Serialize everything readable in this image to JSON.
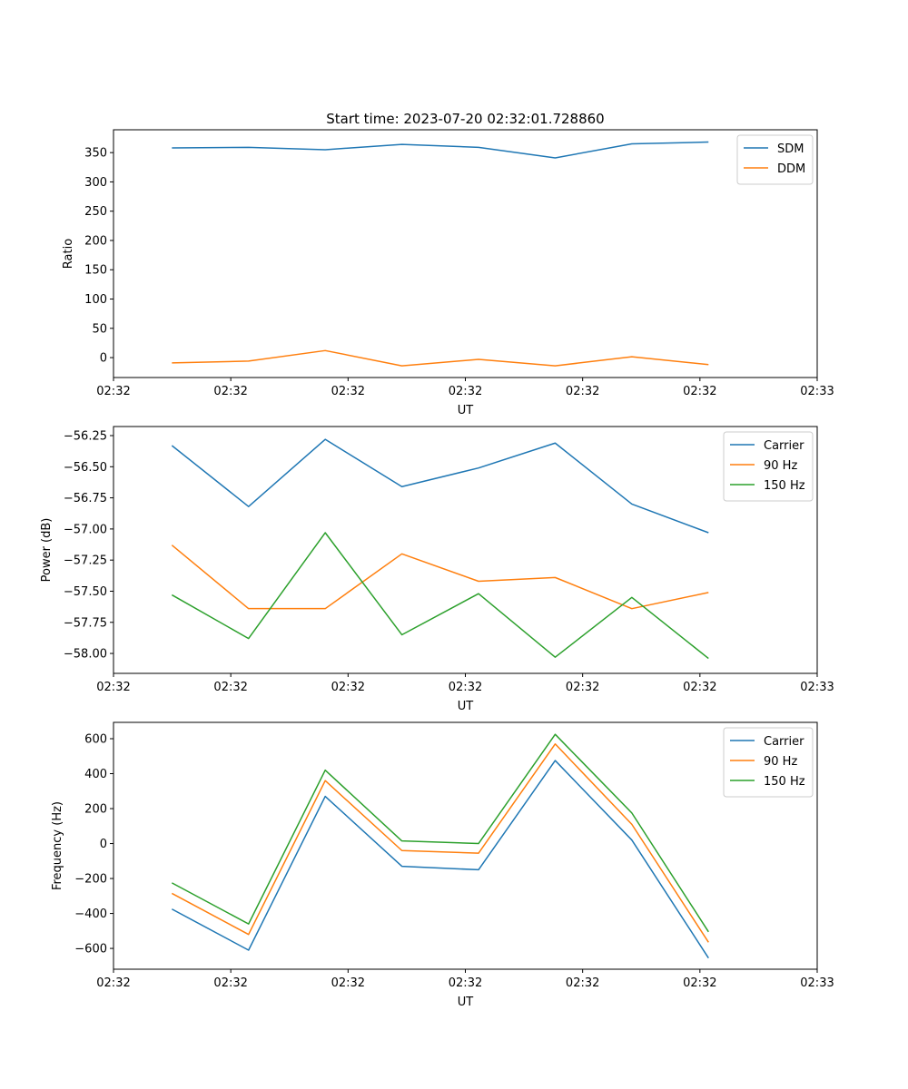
{
  "chart_data": [
    {
      "type": "line",
      "title": "Start time: 2023-07-20 02:32:01.728860",
      "xlabel": "UT",
      "ylabel": "Ratio",
      "x": [
        0,
        1,
        2,
        3,
        4,
        5,
        6,
        7
      ],
      "xlim": [
        -0.762,
        8.418
      ],
      "xticks": [
        -0.762,
        0.768,
        2.298,
        3.828,
        5.358,
        6.888,
        8.418
      ],
      "xtick_labels": [
        "02:32",
        "02:32",
        "02:32",
        "02:32",
        "02:32",
        "02:32",
        "02:33"
      ],
      "ylim": [
        -34,
        389
      ],
      "yticks": [
        0,
        50,
        100,
        150,
        200,
        250,
        300,
        350
      ],
      "ytick_labels": [
        "0",
        "50",
        "100",
        "150",
        "200",
        "250",
        "300",
        "350"
      ],
      "legend": "top-right",
      "series": [
        {
          "name": "SDM",
          "color": "#1f77b4",
          "values": [
            358,
            359,
            355,
            364,
            359,
            341,
            365,
            368
          ]
        },
        {
          "name": "DDM",
          "color": "#ff7f0e",
          "values": [
            -9,
            -6,
            12,
            -14,
            -3,
            -14,
            1.5,
            -12
          ]
        }
      ]
    },
    {
      "type": "line",
      "xlabel": "UT",
      "ylabel": "Power (dB)",
      "x": [
        0,
        1,
        2,
        3,
        4,
        5,
        6,
        7
      ],
      "xlim": [
        -0.762,
        8.418
      ],
      "xticks": [
        -0.762,
        0.768,
        2.298,
        3.828,
        5.358,
        6.888,
        8.418
      ],
      "xtick_labels": [
        "02:32",
        "02:32",
        "02:32",
        "02:32",
        "02:32",
        "02:32",
        "02:33"
      ],
      "ylim": [
        -58.16,
        -56.177
      ],
      "yticks": [
        -58.0,
        -57.75,
        -57.5,
        -57.25,
        -57.0,
        -56.75,
        -56.5,
        -56.25
      ],
      "ytick_labels": [
        "−58.00",
        "−57.75",
        "−57.50",
        "−57.25",
        "−57.00",
        "−56.75",
        "−56.50",
        "−56.25"
      ],
      "legend": "top-right",
      "series": [
        {
          "name": "Carrier",
          "color": "#1f77b4",
          "values": [
            -56.33,
            -56.82,
            -56.28,
            -56.66,
            -56.51,
            -56.31,
            -56.8,
            -57.03
          ]
        },
        {
          "name": "90 Hz",
          "color": "#ff7f0e",
          "values": [
            -57.13,
            -57.64,
            -57.64,
            -57.2,
            -57.42,
            -57.39,
            -57.64,
            -57.51
          ]
        },
        {
          "name": "150 Hz",
          "color": "#2ca02c",
          "values": [
            -57.53,
            -57.88,
            -57.03,
            -57.85,
            -57.52,
            -58.03,
            -57.55,
            -58.04
          ]
        }
      ]
    },
    {
      "type": "line",
      "xlabel": "UT",
      "ylabel": "Frequency (Hz)",
      "x": [
        0,
        1,
        2,
        3,
        4,
        5,
        6,
        7
      ],
      "xlim": [
        -0.762,
        8.418
      ],
      "xticks": [
        -0.762,
        0.768,
        2.298,
        3.828,
        5.358,
        6.888,
        8.418
      ],
      "xtick_labels": [
        "02:32",
        "02:32",
        "02:32",
        "02:32",
        "02:32",
        "02:32",
        "02:33"
      ],
      "ylim": [
        -719,
        693.5
      ],
      "yticks": [
        -600,
        -400,
        -200,
        0,
        200,
        400,
        600
      ],
      "ytick_labels": [
        "−600",
        "−400",
        "−200",
        "0",
        "200",
        "400",
        "600"
      ],
      "legend": "top-right",
      "series": [
        {
          "name": "Carrier",
          "color": "#1f77b4",
          "values": [
            -375,
            -610,
            270,
            -130,
            -150,
            475,
            20,
            -655
          ]
        },
        {
          "name": "90 Hz",
          "color": "#ff7f0e",
          "values": [
            -285,
            -520,
            360,
            -40,
            -55,
            570,
            110,
            -565
          ]
        },
        {
          "name": "150 Hz",
          "color": "#2ca02c",
          "values": [
            -225,
            -460,
            420,
            15,
            0,
            625,
            175,
            -505
          ]
        }
      ]
    }
  ]
}
